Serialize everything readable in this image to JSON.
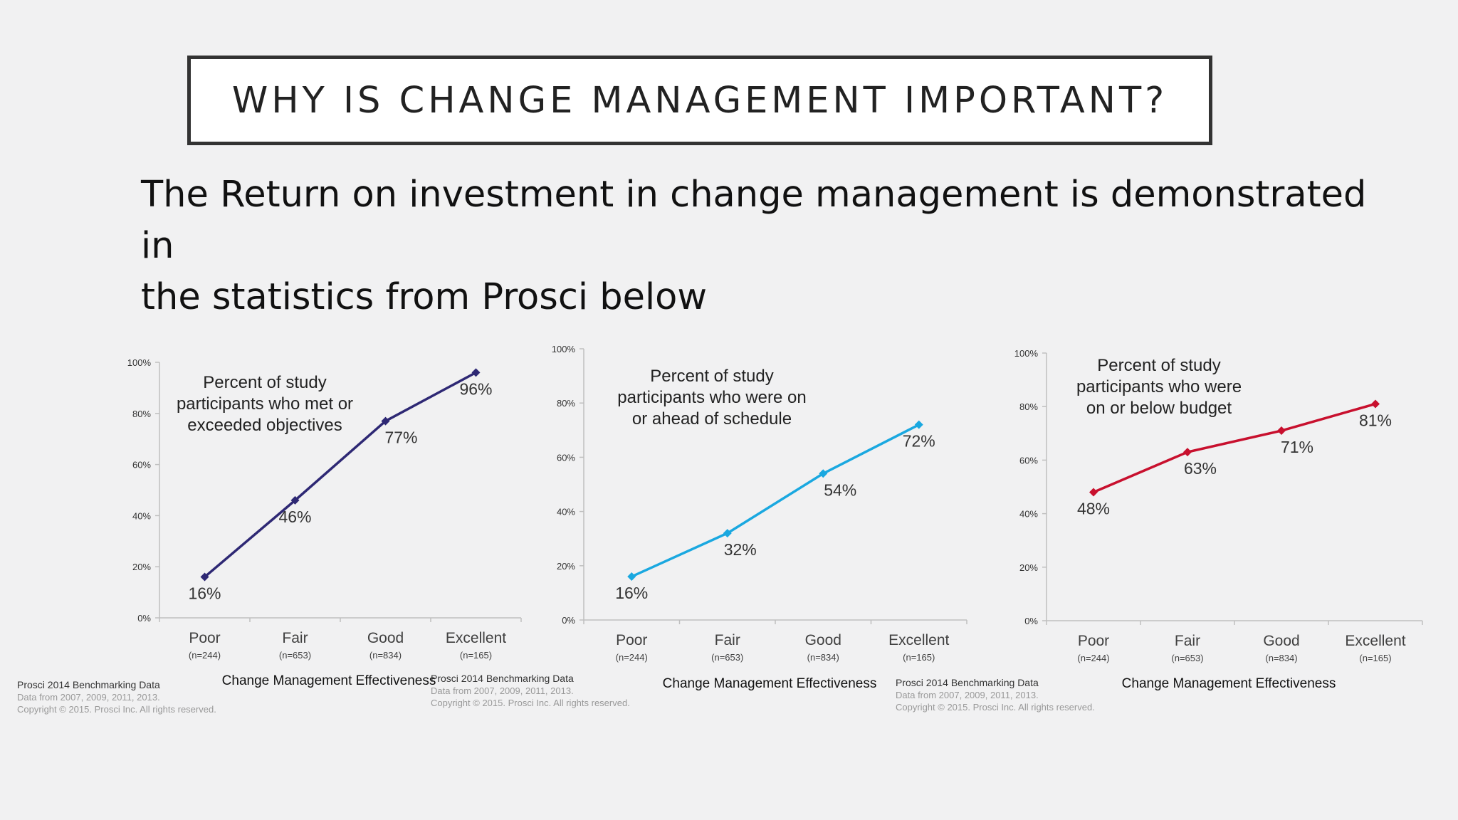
{
  "slide": {
    "title": "WHY IS CHANGE MANAGEMENT IMPORTANT?",
    "subtitle_line1": "The Return on investment in change management is demonstrated in",
    "subtitle_line2": "the statistics from Prosci below"
  },
  "chart_data": [
    {
      "type": "line",
      "title": [
        "Percent of study",
        "participants who met or",
        "exceeded objectives"
      ],
      "categories": [
        "Poor",
        "Fair",
        "Good",
        "Excellent"
      ],
      "category_notes": [
        "(n=244)",
        "(n=653)",
        "(n=834)",
        "(n=165)"
      ],
      "values": [
        16,
        46,
        77,
        96
      ],
      "data_labels": [
        "16%",
        "46%",
        "77%",
        "96%"
      ],
      "xlabel": "Change Management  Effectiveness",
      "ylim": [
        0,
        100
      ],
      "yticks": [
        "0%",
        "20%",
        "40%",
        "60%",
        "80%",
        "100%"
      ],
      "color": "#2e2874",
      "source": [
        "Prosci 2014 Benchmarking Data",
        "Data from 2007, 2009, 2011, 2013.",
        "Copyright © 2015. Prosci Inc. All rights reserved."
      ]
    },
    {
      "type": "line",
      "title": [
        "Percent of study",
        "participants who were on",
        "or ahead of schedule"
      ],
      "categories": [
        "Poor",
        "Fair",
        "Good",
        "Excellent"
      ],
      "category_notes": [
        "(n=244)",
        "(n=653)",
        "(n=834)",
        "(n=165)"
      ],
      "values": [
        16,
        32,
        54,
        72
      ],
      "data_labels": [
        "16%",
        "32%",
        "54%",
        "72%"
      ],
      "xlabel": "Change Management  Effectiveness",
      "ylim": [
        0,
        100
      ],
      "yticks": [
        "0%",
        "20%",
        "40%",
        "60%",
        "80%",
        "100%"
      ],
      "color": "#1aa8e0",
      "source": [
        "Prosci 2014 Benchmarking Data",
        "Data from 2007, 2009, 2011, 2013.",
        "Copyright © 2015. Prosci Inc. All rights reserved."
      ]
    },
    {
      "type": "line",
      "title": [
        "Percent of study",
        "participants who were",
        "on or below budget"
      ],
      "categories": [
        "Poor",
        "Fair",
        "Good",
        "Excellent"
      ],
      "category_notes": [
        "(n=244)",
        "(n=653)",
        "(n=834)",
        "(n=165)"
      ],
      "values": [
        48,
        63,
        71,
        81
      ],
      "data_labels": [
        "48%",
        "63%",
        "71%",
        "81%"
      ],
      "xlabel": "Change Management  Effectiveness",
      "ylim": [
        0,
        100
      ],
      "yticks": [
        "0%",
        "20%",
        "40%",
        "60%",
        "80%",
        "100%"
      ],
      "color": "#c8102e",
      "source": [
        "Prosci 2014 Benchmarking Data",
        "Data from 2007, 2009, 2011, 2013.",
        "Copyright © 2015. Prosci Inc. All rights reserved."
      ]
    }
  ]
}
